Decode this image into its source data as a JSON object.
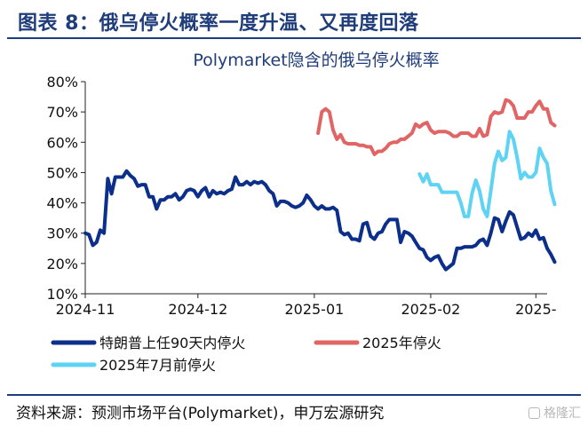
{
  "figure": {
    "title": "图表 8：俄乌停火概率一度升温、又再度回落",
    "source": "资料来源：预测市场平台(Polymarket)，申万宏源研究",
    "watermark": "格隆汇"
  },
  "colors": {
    "header": "#1f3d7a"
  },
  "chart_data": {
    "type": "line",
    "title": "Polymarket隐含的俄乌停火概率",
    "x_ticks": [
      {
        "x": 0,
        "label": "2024-11"
      },
      {
        "x": 30,
        "label": "2024-12"
      },
      {
        "x": 61,
        "label": "2025-01"
      },
      {
        "x": 92,
        "label": "2025-02"
      },
      {
        "x": 120,
        "label": "2025-"
      }
    ],
    "xlim": [
      0,
      123
    ],
    "ylim": [
      10,
      80
    ],
    "y_ticks": [
      10,
      20,
      30,
      40,
      50,
      60,
      70,
      80
    ],
    "y_tick_labels": [
      "10%",
      "20%",
      "30%",
      "40%",
      "50%",
      "60%",
      "70%",
      "80%"
    ],
    "grid": false,
    "legend_position": "bottom",
    "series": [
      {
        "name": "特朗普上任90天内停火",
        "color": "#0b2f8a",
        "points": [
          [
            0,
            30
          ],
          [
            1,
            29.5
          ],
          [
            2,
            26
          ],
          [
            3,
            27
          ],
          [
            4,
            31
          ],
          [
            5,
            30
          ],
          [
            6,
            48
          ],
          [
            7,
            43
          ],
          [
            8,
            48.5
          ],
          [
            9,
            48.5
          ],
          [
            10,
            48.5
          ],
          [
            11,
            50.5
          ],
          [
            12,
            49
          ],
          [
            13,
            48
          ],
          [
            14,
            45.5
          ],
          [
            15,
            46
          ],
          [
            16,
            46
          ],
          [
            17,
            42
          ],
          [
            18,
            42
          ],
          [
            19,
            38
          ],
          [
            20,
            41
          ],
          [
            21,
            41
          ],
          [
            22,
            42
          ],
          [
            23,
            42
          ],
          [
            24,
            43
          ],
          [
            25,
            41
          ],
          [
            26,
            42
          ],
          [
            27,
            44
          ],
          [
            28,
            44.5
          ],
          [
            29,
            44
          ],
          [
            30,
            42
          ],
          [
            31,
            44
          ],
          [
            32,
            45
          ],
          [
            33,
            42
          ],
          [
            34,
            44
          ],
          [
            35,
            43
          ],
          [
            36,
            43.5
          ],
          [
            37,
            43
          ],
          [
            38,
            44
          ],
          [
            39,
            44.5
          ],
          [
            40,
            48.5
          ],
          [
            41,
            46
          ],
          [
            42,
            46
          ],
          [
            43,
            47
          ],
          [
            44,
            46
          ],
          [
            45,
            47
          ],
          [
            46,
            46.5
          ],
          [
            47,
            47
          ],
          [
            48,
            46
          ],
          [
            49,
            44
          ],
          [
            50,
            43
          ],
          [
            51,
            39
          ],
          [
            52,
            40.5
          ],
          [
            53,
            40.5
          ],
          [
            54,
            40
          ],
          [
            55,
            39
          ],
          [
            56,
            38.5
          ],
          [
            57,
            39
          ],
          [
            58,
            40
          ],
          [
            59,
            42.5
          ],
          [
            60,
            41
          ],
          [
            61,
            39
          ],
          [
            62,
            38
          ],
          [
            63,
            39
          ],
          [
            64,
            38
          ],
          [
            65,
            38
          ],
          [
            66,
            38.5
          ],
          [
            67,
            37.5
          ],
          [
            68,
            30.5
          ],
          [
            69,
            29.5
          ],
          [
            70,
            30
          ],
          [
            71,
            28
          ],
          [
            72,
            28
          ],
          [
            73,
            27.5
          ],
          [
            74,
            33
          ],
          [
            75,
            33.5
          ],
          [
            76,
            29
          ],
          [
            77,
            28
          ],
          [
            78,
            30
          ],
          [
            79,
            30.5
          ],
          [
            80,
            33
          ],
          [
            81,
            34.5
          ],
          [
            82,
            34.5
          ],
          [
            83,
            34.5
          ],
          [
            84,
            27
          ],
          [
            85,
            30.5
          ],
          [
            86,
            30
          ],
          [
            87,
            29
          ],
          [
            88,
            27
          ],
          [
            89,
            25
          ],
          [
            90,
            24.5
          ],
          [
            91,
            22
          ],
          [
            92,
            21
          ],
          [
            93,
            22
          ],
          [
            94,
            22.5
          ],
          [
            95,
            20
          ],
          [
            96,
            18
          ],
          [
            97,
            19
          ],
          [
            98,
            20
          ],
          [
            99,
            25
          ],
          [
            100,
            25
          ],
          [
            101,
            25.5
          ],
          [
            102,
            25.5
          ],
          [
            103,
            25.5
          ],
          [
            104,
            26
          ],
          [
            105,
            27.5
          ],
          [
            106,
            28
          ],
          [
            107,
            26
          ],
          [
            108,
            30
          ],
          [
            109,
            35
          ],
          [
            110,
            34.5
          ],
          [
            111,
            30.5
          ],
          [
            112,
            34
          ],
          [
            113,
            37
          ],
          [
            114,
            36
          ],
          [
            115,
            32
          ],
          [
            116,
            28
          ],
          [
            117,
            28.5
          ],
          [
            118,
            30
          ],
          [
            119,
            29
          ],
          [
            120,
            31
          ],
          [
            121,
            28
          ],
          [
            122,
            28.5
          ],
          [
            123,
            25
          ],
          [
            124,
            23
          ],
          [
            125,
            20.5
          ]
        ]
      },
      {
        "name": "2025年停火",
        "color": "#e06666",
        "points": [
          [
            62,
            63
          ],
          [
            63,
            70
          ],
          [
            64,
            71
          ],
          [
            65,
            70
          ],
          [
            66,
            64
          ],
          [
            67,
            61
          ],
          [
            68,
            62.5
          ],
          [
            69,
            60
          ],
          [
            70,
            59.5
          ],
          [
            71,
            59.5
          ],
          [
            72,
            59.5
          ],
          [
            73,
            59
          ],
          [
            74,
            59
          ],
          [
            75,
            58.5
          ],
          [
            76,
            58.5
          ],
          [
            77,
            56
          ],
          [
            78,
            57
          ],
          [
            79,
            57
          ],
          [
            80,
            58
          ],
          [
            81,
            59.5
          ],
          [
            82,
            60
          ],
          [
            83,
            60
          ],
          [
            84,
            61
          ],
          [
            85,
            61
          ],
          [
            86,
            62
          ],
          [
            87,
            63
          ],
          [
            88,
            66
          ],
          [
            89,
            65
          ],
          [
            90,
            66
          ],
          [
            91,
            66.5
          ],
          [
            92,
            64
          ],
          [
            93,
            63
          ],
          [
            94,
            63.5
          ],
          [
            95,
            63.5
          ],
          [
            96,
            63.5
          ],
          [
            97,
            63
          ],
          [
            98,
            62
          ],
          [
            99,
            62
          ],
          [
            100,
            63
          ],
          [
            101,
            63
          ],
          [
            102,
            63
          ],
          [
            103,
            62
          ],
          [
            104,
            62
          ],
          [
            105,
            64.5
          ],
          [
            106,
            62
          ],
          [
            107,
            62.5
          ],
          [
            108,
            68.5
          ],
          [
            109,
            70
          ],
          [
            110,
            69.5
          ],
          [
            111,
            70
          ],
          [
            112,
            74
          ],
          [
            113,
            73.5
          ],
          [
            114,
            72
          ],
          [
            115,
            68
          ],
          [
            116,
            68
          ],
          [
            117,
            68
          ],
          [
            118,
            70
          ],
          [
            119,
            70
          ],
          [
            120,
            72
          ],
          [
            121,
            73.5
          ],
          [
            122,
            71
          ],
          [
            123,
            71
          ],
          [
            124,
            66.5
          ],
          [
            125,
            65.5
          ]
        ]
      },
      {
        "name": "2025年7月前停火",
        "color": "#5fd3f3",
        "points": [
          [
            89,
            49.5
          ],
          [
            90,
            47
          ],
          [
            91,
            49.5
          ],
          [
            92,
            46
          ],
          [
            93,
            46
          ],
          [
            94,
            46
          ],
          [
            95,
            43.5
          ],
          [
            96,
            43.5
          ],
          [
            97,
            43.5
          ],
          [
            98,
            43.5
          ],
          [
            99,
            43.5
          ],
          [
            100,
            40
          ],
          [
            101,
            35.5
          ],
          [
            102,
            35.5
          ],
          [
            103,
            43
          ],
          [
            104,
            47.5
          ],
          [
            105,
            44
          ],
          [
            106,
            38
          ],
          [
            107,
            35.5
          ],
          [
            108,
            44
          ],
          [
            109,
            53
          ],
          [
            110,
            57
          ],
          [
            111,
            54
          ],
          [
            112,
            55
          ],
          [
            113,
            63.5
          ],
          [
            114,
            61
          ],
          [
            115,
            55
          ],
          [
            116,
            48
          ],
          [
            117,
            50
          ],
          [
            118,
            48.5
          ],
          [
            119,
            48.5
          ],
          [
            120,
            50
          ],
          [
            121,
            58
          ],
          [
            122,
            55
          ],
          [
            123,
            53
          ],
          [
            124,
            44
          ],
          [
            125,
            39.5
          ]
        ]
      }
    ]
  }
}
